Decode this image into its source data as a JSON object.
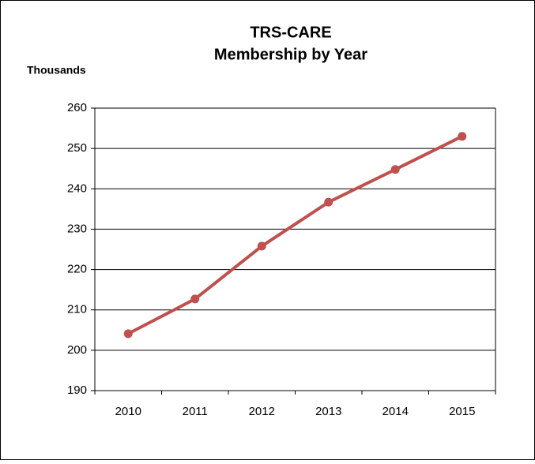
{
  "chart_data": {
    "type": "line",
    "title": "TRS-CARE",
    "subtitle": "Membership by Year",
    "y_label": "Thousands",
    "categories": [
      "2010",
      "2011",
      "2012",
      "2013",
      "2014",
      "2015"
    ],
    "series": [
      {
        "name": "Membership",
        "color": "#c0504d",
        "values": [
          204.1,
          212.7,
          225.8,
          236.7,
          244.8,
          253.0
        ]
      }
    ],
    "ylim": [
      190,
      260
    ],
    "yticks": [
      190,
      200,
      210,
      220,
      230,
      240,
      250,
      260
    ],
    "grid": true,
    "legend": false
  }
}
